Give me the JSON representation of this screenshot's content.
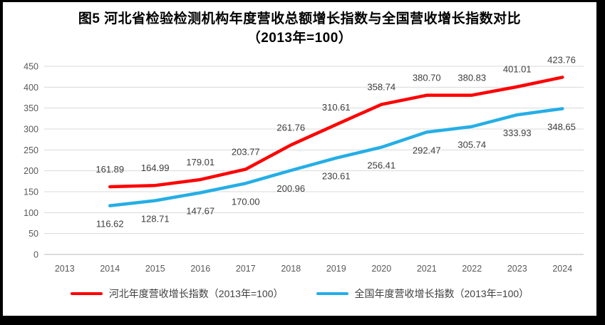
{
  "title": {
    "line1": "图5  河北省检验检测机构年度营收总额增长指数与全国营收增长指数对比",
    "line2": "（2013年=100）"
  },
  "chart_data": {
    "type": "line",
    "categories": [
      "2013",
      "2014",
      "2015",
      "2016",
      "2017",
      "2018",
      "2019",
      "2020",
      "2021",
      "2022",
      "2023",
      "2024"
    ],
    "series": [
      {
        "key": "hebei",
        "name": "河北年度营收增长指数（2013年=100）",
        "color": "#fe0000",
        "label_position": "above",
        "values": [
          null,
          161.89,
          164.99,
          179.01,
          203.77,
          261.76,
          310.61,
          358.74,
          380.7,
          380.83,
          401.01,
          423.76
        ]
      },
      {
        "key": "national",
        "name": "全国年度营收增长指数（2013年=100）",
        "color": "#25aee6",
        "label_position": "below",
        "values": [
          null,
          116.62,
          128.71,
          147.67,
          170.0,
          200.96,
          230.61,
          256.41,
          292.47,
          305.74,
          333.93,
          348.65
        ]
      }
    ],
    "ylim": [
      0,
      450
    ],
    "ytick_step": 50,
    "grid": true,
    "legend_position": "bottom",
    "xlabel": "",
    "ylabel": ""
  },
  "colors": {
    "frame": "#000000",
    "background": "#ffffff",
    "grid": "#d9d9d9",
    "axis_line": "#c6c6c6",
    "axis_text": "#595959",
    "label_text": "#3d3d3d",
    "title_text": "#000000"
  }
}
